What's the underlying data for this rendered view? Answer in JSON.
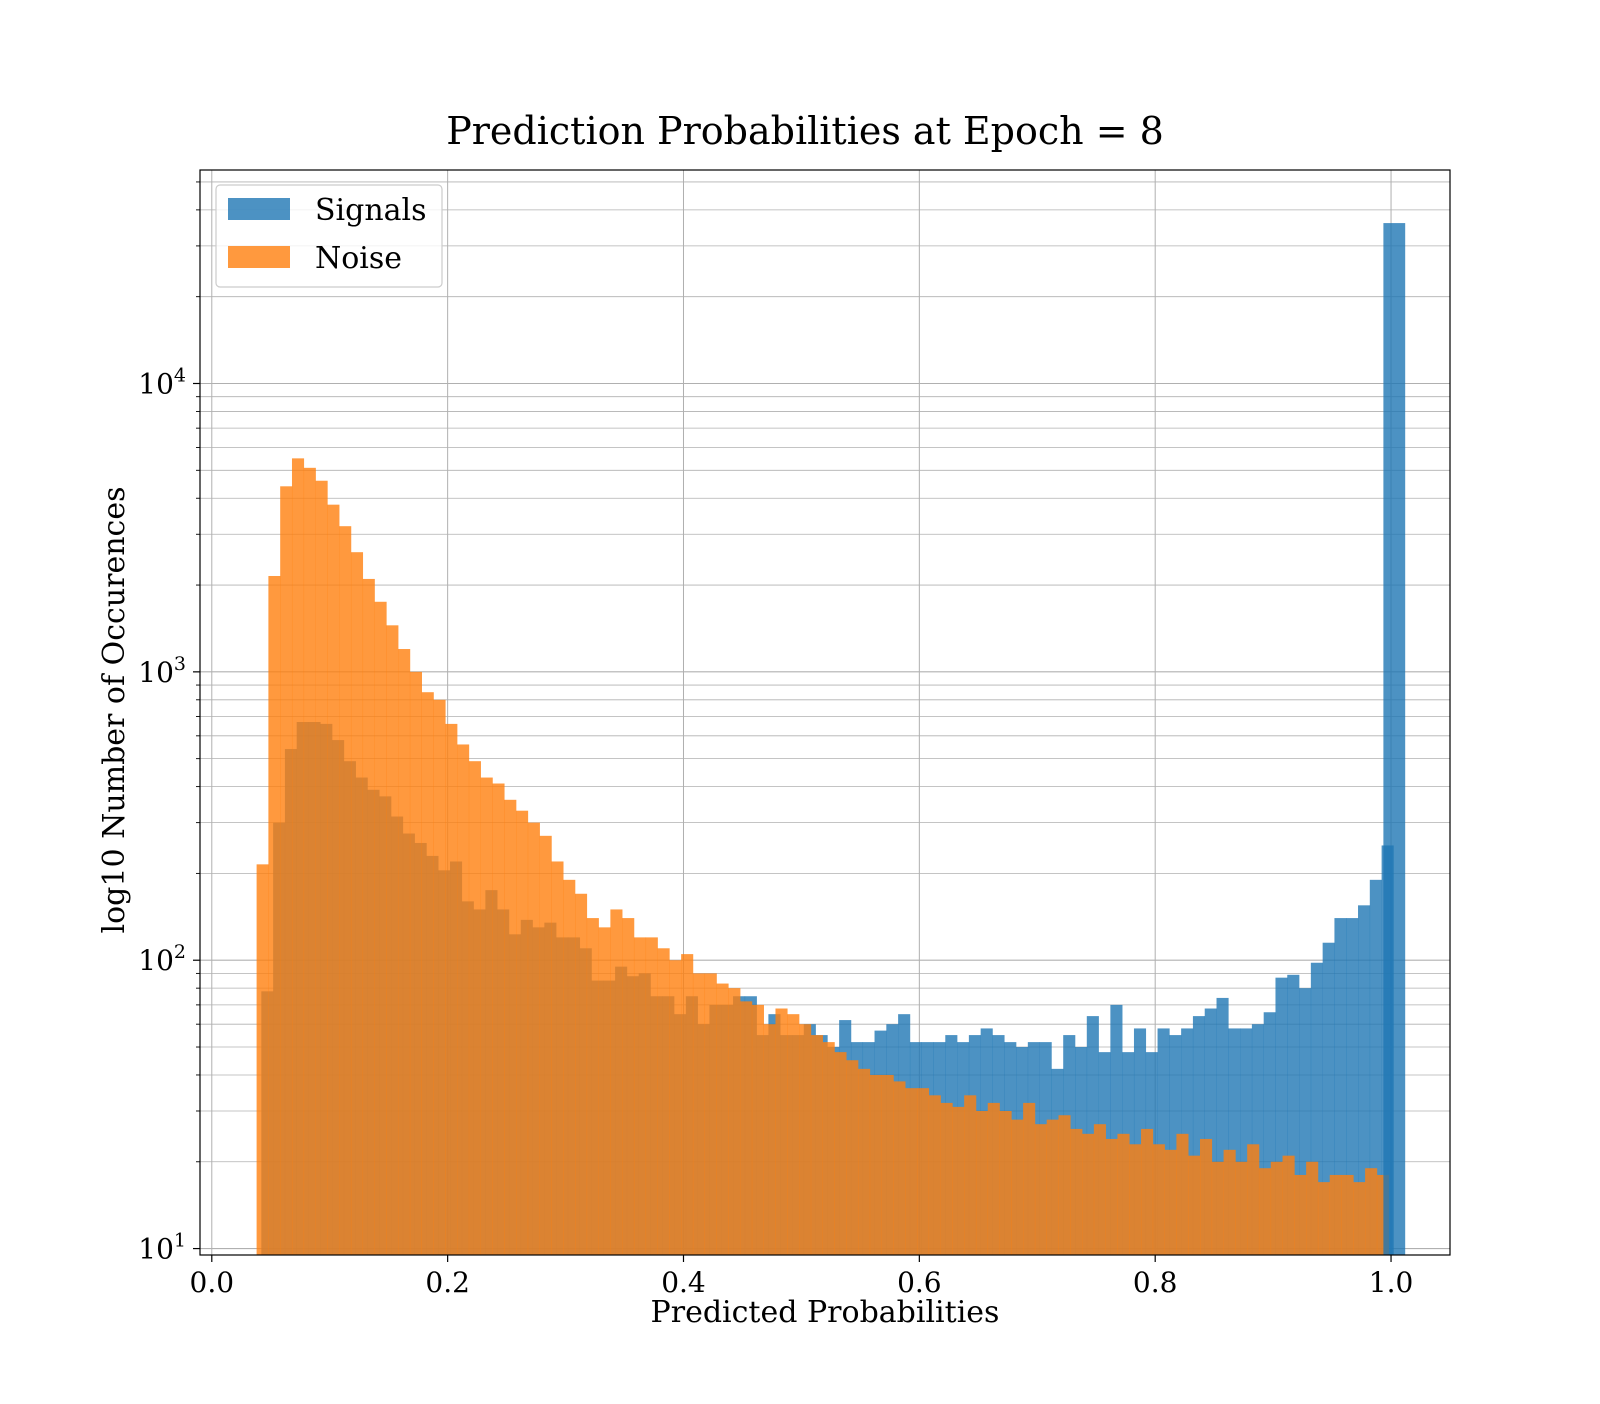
{
  "chart_data": {
    "type": "bar",
    "subtype": "histogram",
    "title": "Prediction Probabilities at Epoch = 8",
    "xlabel": "Predicted Probabilities",
    "ylabel": "log10 Number of Occurences",
    "xlim": [
      -0.01,
      1.05
    ],
    "ylim": [
      9.5,
      55000
    ],
    "yscale": "log",
    "grid": true,
    "legend_position": "upper left",
    "xticks": [
      {
        "value": 0.0,
        "label": "0.0"
      },
      {
        "value": 0.2,
        "label": "0.2"
      },
      {
        "value": 0.4,
        "label": "0.4"
      },
      {
        "value": 0.6,
        "label": "0.6"
      },
      {
        "value": 0.8,
        "label": "0.8"
      },
      {
        "value": 1.0,
        "label": "1.0"
      }
    ],
    "yticks": [
      {
        "value": 10,
        "base": "10",
        "exp": "1"
      },
      {
        "value": 100,
        "base": "10",
        "exp": "2"
      },
      {
        "value": 1000,
        "base": "10",
        "exp": "3"
      },
      {
        "value": 10000,
        "base": "10",
        "exp": "4"
      }
    ],
    "series": [
      {
        "name": "Signals",
        "color": "#1f77b4",
        "opacity": 0.8,
        "bins": [
          [
            0.042,
            0.052,
            78
          ],
          [
            0.052,
            0.062,
            300
          ],
          [
            0.062,
            0.072,
            540
          ],
          [
            0.072,
            0.082,
            670
          ],
          [
            0.082,
            0.092,
            670
          ],
          [
            0.092,
            0.102,
            660
          ],
          [
            0.102,
            0.112,
            580
          ],
          [
            0.112,
            0.122,
            490
          ],
          [
            0.122,
            0.132,
            430
          ],
          [
            0.132,
            0.142,
            390
          ],
          [
            0.142,
            0.152,
            370
          ],
          [
            0.152,
            0.162,
            315
          ],
          [
            0.162,
            0.172,
            275
          ],
          [
            0.172,
            0.182,
            255
          ],
          [
            0.182,
            0.192,
            230
          ],
          [
            0.192,
            0.202,
            205
          ],
          [
            0.202,
            0.212,
            220
          ],
          [
            0.212,
            0.222,
            160
          ],
          [
            0.222,
            0.232,
            150
          ],
          [
            0.232,
            0.242,
            175
          ],
          [
            0.242,
            0.252,
            150
          ],
          [
            0.252,
            0.262,
            123
          ],
          [
            0.262,
            0.272,
            138
          ],
          [
            0.272,
            0.282,
            130
          ],
          [
            0.282,
            0.292,
            135
          ],
          [
            0.292,
            0.302,
            120
          ],
          [
            0.302,
            0.312,
            120
          ],
          [
            0.312,
            0.322,
            110
          ],
          [
            0.322,
            0.332,
            85
          ],
          [
            0.332,
            0.342,
            85
          ],
          [
            0.342,
            0.352,
            95
          ],
          [
            0.352,
            0.362,
            88
          ],
          [
            0.362,
            0.372,
            90
          ],
          [
            0.372,
            0.382,
            75
          ],
          [
            0.382,
            0.392,
            75
          ],
          [
            0.392,
            0.402,
            65
          ],
          [
            0.402,
            0.412,
            75
          ],
          [
            0.412,
            0.422,
            60
          ],
          [
            0.422,
            0.432,
            70
          ],
          [
            0.432,
            0.442,
            70
          ],
          [
            0.442,
            0.452,
            75
          ],
          [
            0.452,
            0.462,
            75
          ],
          [
            0.462,
            0.472,
            55
          ],
          [
            0.472,
            0.482,
            65
          ],
          [
            0.482,
            0.492,
            55
          ],
          [
            0.492,
            0.502,
            55
          ],
          [
            0.502,
            0.512,
            60
          ],
          [
            0.512,
            0.522,
            55
          ],
          [
            0.522,
            0.532,
            50
          ],
          [
            0.532,
            0.542,
            62
          ],
          [
            0.542,
            0.552,
            52
          ],
          [
            0.552,
            0.562,
            52
          ],
          [
            0.562,
            0.572,
            57
          ],
          [
            0.572,
            0.582,
            60
          ],
          [
            0.582,
            0.592,
            65
          ],
          [
            0.592,
            0.602,
            52
          ],
          [
            0.602,
            0.612,
            52
          ],
          [
            0.612,
            0.622,
            52
          ],
          [
            0.622,
            0.632,
            55
          ],
          [
            0.632,
            0.642,
            52
          ],
          [
            0.642,
            0.652,
            55
          ],
          [
            0.652,
            0.662,
            58
          ],
          [
            0.662,
            0.672,
            55
          ],
          [
            0.672,
            0.682,
            52
          ],
          [
            0.682,
            0.692,
            50
          ],
          [
            0.692,
            0.702,
            52
          ],
          [
            0.702,
            0.712,
            52
          ],
          [
            0.712,
            0.722,
            42
          ],
          [
            0.722,
            0.732,
            55
          ],
          [
            0.732,
            0.742,
            50
          ],
          [
            0.742,
            0.752,
            64
          ],
          [
            0.752,
            0.762,
            48
          ],
          [
            0.762,
            0.772,
            70
          ],
          [
            0.772,
            0.782,
            48
          ],
          [
            0.782,
            0.792,
            58
          ],
          [
            0.792,
            0.802,
            48
          ],
          [
            0.802,
            0.812,
            58
          ],
          [
            0.812,
            0.822,
            55
          ],
          [
            0.822,
            0.832,
            58
          ],
          [
            0.832,
            0.842,
            64
          ],
          [
            0.842,
            0.852,
            68
          ],
          [
            0.852,
            0.862,
            74
          ],
          [
            0.862,
            0.872,
            58
          ],
          [
            0.872,
            0.882,
            58
          ],
          [
            0.882,
            0.892,
            60
          ],
          [
            0.892,
            0.902,
            66
          ],
          [
            0.902,
            0.912,
            87
          ],
          [
            0.912,
            0.922,
            89
          ],
          [
            0.922,
            0.932,
            80
          ],
          [
            0.932,
            0.942,
            98
          ],
          [
            0.942,
            0.952,
            115
          ],
          [
            0.952,
            0.962,
            140
          ],
          [
            0.962,
            0.972,
            140
          ],
          [
            0.972,
            0.982,
            155
          ],
          [
            0.982,
            0.992,
            190
          ],
          [
            0.992,
            1.002,
            250
          ]
        ]
      },
      {
        "name": "Noise",
        "color": "#ff7f0e",
        "opacity": 0.8,
        "bins": [
          [
            0.038,
            0.048,
            215
          ],
          [
            0.048,
            0.058,
            2150
          ],
          [
            0.058,
            0.068,
            4400
          ],
          [
            0.068,
            0.078,
            5500
          ],
          [
            0.078,
            0.088,
            5100
          ],
          [
            0.088,
            0.098,
            4600
          ],
          [
            0.098,
            0.108,
            3800
          ],
          [
            0.108,
            0.118,
            3200
          ],
          [
            0.118,
            0.128,
            2600
          ],
          [
            0.128,
            0.138,
            2100
          ],
          [
            0.138,
            0.148,
            1750
          ],
          [
            0.148,
            0.158,
            1450
          ],
          [
            0.158,
            0.168,
            1200
          ],
          [
            0.168,
            0.178,
            1000
          ],
          [
            0.178,
            0.188,
            850
          ],
          [
            0.188,
            0.198,
            800
          ],
          [
            0.198,
            0.208,
            660
          ],
          [
            0.208,
            0.218,
            560
          ],
          [
            0.218,
            0.228,
            490
          ],
          [
            0.228,
            0.238,
            430
          ],
          [
            0.238,
            0.248,
            410
          ],
          [
            0.248,
            0.258,
            360
          ],
          [
            0.258,
            0.268,
            330
          ],
          [
            0.268,
            0.278,
            300
          ],
          [
            0.278,
            0.288,
            270
          ],
          [
            0.288,
            0.298,
            220
          ],
          [
            0.298,
            0.308,
            190
          ],
          [
            0.308,
            0.318,
            170
          ],
          [
            0.318,
            0.328,
            140
          ],
          [
            0.328,
            0.338,
            130
          ],
          [
            0.338,
            0.348,
            150
          ],
          [
            0.348,
            0.358,
            140
          ],
          [
            0.358,
            0.368,
            120
          ],
          [
            0.368,
            0.378,
            120
          ],
          [
            0.378,
            0.388,
            110
          ],
          [
            0.388,
            0.398,
            100
          ],
          [
            0.398,
            0.408,
            105
          ],
          [
            0.408,
            0.418,
            90
          ],
          [
            0.418,
            0.428,
            90
          ],
          [
            0.428,
            0.438,
            83
          ],
          [
            0.438,
            0.448,
            80
          ],
          [
            0.448,
            0.458,
            72
          ],
          [
            0.458,
            0.468,
            70
          ],
          [
            0.468,
            0.478,
            60
          ],
          [
            0.478,
            0.488,
            68
          ],
          [
            0.488,
            0.498,
            65
          ],
          [
            0.498,
            0.508,
            60
          ],
          [
            0.508,
            0.518,
            55
          ],
          [
            0.518,
            0.528,
            52
          ],
          [
            0.528,
            0.538,
            48
          ],
          [
            0.538,
            0.548,
            45
          ],
          [
            0.548,
            0.558,
            42
          ],
          [
            0.558,
            0.568,
            40
          ],
          [
            0.568,
            0.578,
            40
          ],
          [
            0.578,
            0.588,
            38
          ],
          [
            0.588,
            0.598,
            36
          ],
          [
            0.598,
            0.608,
            36
          ],
          [
            0.608,
            0.618,
            34
          ],
          [
            0.618,
            0.628,
            32
          ],
          [
            0.628,
            0.638,
            31
          ],
          [
            0.638,
            0.648,
            34
          ],
          [
            0.648,
            0.658,
            30
          ],
          [
            0.658,
            0.668,
            32
          ],
          [
            0.668,
            0.678,
            30
          ],
          [
            0.678,
            0.688,
            28
          ],
          [
            0.688,
            0.698,
            32
          ],
          [
            0.698,
            0.708,
            27
          ],
          [
            0.708,
            0.718,
            28
          ],
          [
            0.718,
            0.728,
            29
          ],
          [
            0.728,
            0.738,
            26
          ],
          [
            0.738,
            0.748,
            25
          ],
          [
            0.748,
            0.758,
            27
          ],
          [
            0.758,
            0.768,
            24
          ],
          [
            0.768,
            0.778,
            25
          ],
          [
            0.778,
            0.788,
            23
          ],
          [
            0.788,
            0.798,
            26
          ],
          [
            0.798,
            0.808,
            23
          ],
          [
            0.808,
            0.818,
            22
          ],
          [
            0.818,
            0.828,
            25
          ],
          [
            0.828,
            0.838,
            21
          ],
          [
            0.838,
            0.848,
            24
          ],
          [
            0.848,
            0.858,
            20
          ],
          [
            0.858,
            0.868,
            22
          ],
          [
            0.868,
            0.878,
            20
          ],
          [
            0.878,
            0.888,
            23
          ],
          [
            0.888,
            0.898,
            19
          ],
          [
            0.898,
            0.908,
            20
          ],
          [
            0.908,
            0.918,
            21
          ],
          [
            0.918,
            0.928,
            18
          ],
          [
            0.928,
            0.938,
            20
          ],
          [
            0.938,
            0.948,
            17
          ],
          [
            0.948,
            0.958,
            18
          ],
          [
            0.958,
            0.968,
            18
          ],
          [
            0.968,
            0.978,
            17
          ],
          [
            0.978,
            0.988,
            19
          ],
          [
            0.988,
            0.998,
            18
          ]
        ]
      }
    ]
  }
}
